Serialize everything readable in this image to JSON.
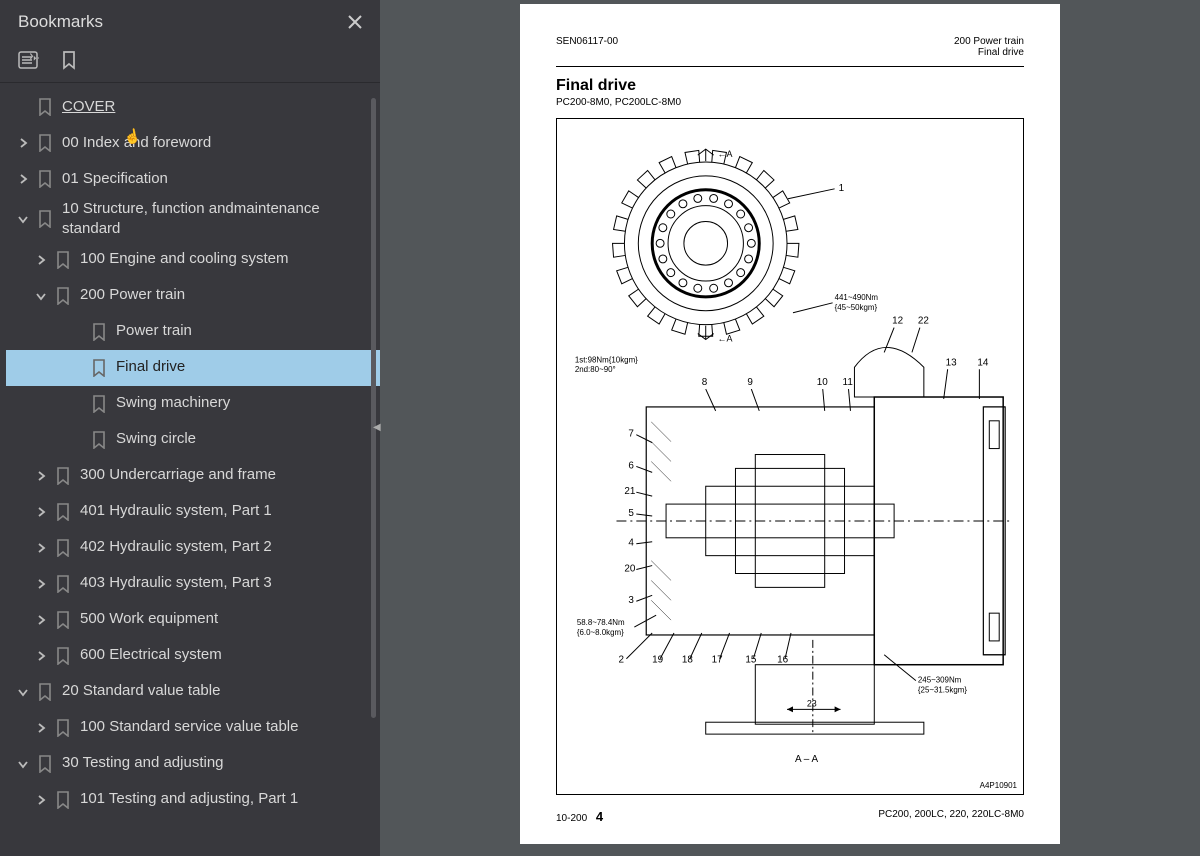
{
  "sidebar": {
    "title": "Bookmarks",
    "items": [
      {
        "indent": 0,
        "chev": "",
        "label": "COVER",
        "selected": false,
        "underline": true
      },
      {
        "indent": 0,
        "chev": "right",
        "label": "00 Index and foreword"
      },
      {
        "indent": 0,
        "chev": "right",
        "label": "01 Specification"
      },
      {
        "indent": 0,
        "chev": "down",
        "label": "10 Structure, function andmaintenance standard"
      },
      {
        "indent": 1,
        "chev": "right",
        "label": "100 Engine and cooling system"
      },
      {
        "indent": 1,
        "chev": "down",
        "label": "200 Power train"
      },
      {
        "indent": 2,
        "chev": "",
        "label": "Power train"
      },
      {
        "indent": 2,
        "chev": "",
        "label": "Final drive",
        "selected": true
      },
      {
        "indent": 2,
        "chev": "",
        "label": "Swing machinery"
      },
      {
        "indent": 2,
        "chev": "",
        "label": "Swing circle"
      },
      {
        "indent": 1,
        "chev": "right",
        "label": "300 Undercarriage and frame"
      },
      {
        "indent": 1,
        "chev": "right",
        "label": "401 Hydraulic system, Part 1"
      },
      {
        "indent": 1,
        "chev": "right",
        "label": "402 Hydraulic system, Part 2"
      },
      {
        "indent": 1,
        "chev": "right",
        "label": "403 Hydraulic system, Part 3"
      },
      {
        "indent": 1,
        "chev": "right",
        "label": "500 Work equipment"
      },
      {
        "indent": 1,
        "chev": "right",
        "label": "600 Electrical system"
      },
      {
        "indent": 0,
        "chev": "down",
        "label": "20 Standard value table"
      },
      {
        "indent": 1,
        "chev": "right",
        "label": "100 Standard service value table"
      },
      {
        "indent": 0,
        "chev": "down",
        "label": "30 Testing and adjusting"
      },
      {
        "indent": 1,
        "chev": "right",
        "label": "101 Testing and adjusting, Part 1"
      }
    ]
  },
  "page": {
    "doc_id": "SEN06117-00",
    "section_line1": "200 Power train",
    "section_line2": "Final drive",
    "title": "Final drive",
    "subtitle": "PC200-8M0, PC200LC-8M0",
    "figure_id": "A4P10901",
    "section_marker": "A – A",
    "callouts_top": [
      "1",
      "12",
      "22",
      "13",
      "14"
    ],
    "callouts_left": [
      "7",
      "6",
      "21",
      "5",
      "4",
      "20",
      "3"
    ],
    "callouts_mid": [
      "8",
      "9",
      "10",
      "11"
    ],
    "callouts_bot": [
      "2",
      "19",
      "18",
      "17",
      "15",
      "16",
      "23"
    ],
    "torque1_l1": "441~490Nm",
    "torque1_l2": "{45~50kɡm}",
    "torque2_l1": "1st:98Nm{10kɡm}",
    "torque2_l2": "2nd:80~90°",
    "torque3_l1": "58.8~78.4Nm",
    "torque3_l2": "{6.0~8.0kɡm}",
    "torque4_l1": "245~309Nm",
    "torque4_l2": "{25~31.5kɡm}",
    "arrow_a_top": "←A",
    "arrow_a_bot": "←A",
    "footer_left_a": "10-200",
    "footer_left_b": "4",
    "footer_right": "PC200, 200LC, 220, 220LC-8M0"
  },
  "colors": {
    "sidebar_bg": "#38383d",
    "selected_bg": "#9fcce8",
    "content_bg": "#525659",
    "page_bg": "#ffffff"
  }
}
